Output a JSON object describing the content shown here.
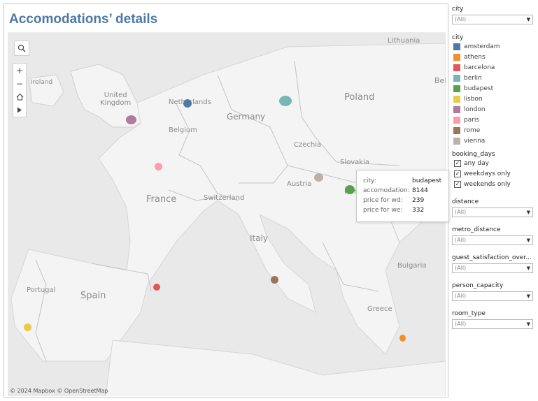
{
  "title": "Accomodations’ details",
  "map": {
    "credit": "© 2024 Mapbox © OpenStreetMap",
    "labels": {
      "lithuania": "Lithuania",
      "ireland": "Ireland",
      "united_kingdom": "United\nKingdom",
      "netherlands": "Netherlands",
      "germany": "Germany",
      "poland": "Poland",
      "bela": "Bela",
      "belgium": "Belgium",
      "czechia": "Czechia",
      "slovakia": "Slovakia",
      "austria": "Austria",
      "hungary": "Hungary",
      "france": "France",
      "switzerland": "Switzerland",
      "italy": "Italy",
      "bulgaria": "Bulgaria",
      "spain": "Spain",
      "portugal": "Portugal",
      "greece": "Greece"
    },
    "controls": {
      "search_icon": "search-icon",
      "zoom_in": "+",
      "zoom_out": "−",
      "home_icon": "home-icon",
      "expand_icon": "play-icon"
    },
    "colors": {
      "amsterdam": "#4e79a7",
      "athens": "#f28e2b",
      "barcelona": "#e15759",
      "berlin": "#76b7b2",
      "budapest": "#59a14f",
      "lisbon": "#edc948",
      "london": "#b07aa1",
      "paris": "#ff9da7",
      "rome": "#9c755f",
      "vienna": "#bab0ac"
    }
  },
  "tooltip": {
    "city_label": "city:",
    "city_value": "budapest",
    "accom_label": "accomodation:",
    "accom_value": "8144",
    "wd_label": "price for wd:",
    "wd_value": "239",
    "we_label": "price for we:",
    "we_value": "332"
  },
  "filters": {
    "city_dropdown": {
      "title": "city",
      "value": "(All)"
    },
    "city_legend": {
      "title": "city",
      "items": [
        "amsterdam",
        "athens",
        "barcelona",
        "berlin",
        "budapest",
        "lisbon",
        "london",
        "paris",
        "rome",
        "vienna"
      ]
    },
    "booking_days": {
      "title": "booking_days",
      "options": [
        "any day",
        "weekdays only",
        "weekends only"
      ],
      "checkmark": "✓"
    },
    "distance": {
      "title": "distance",
      "value": "(All)"
    },
    "metro_distance": {
      "title": "metro_distance",
      "value": "(All)"
    },
    "guest_satisfaction": {
      "title": "guest_satisfaction_over...",
      "value": "(All)"
    },
    "person_capacity": {
      "title": "person_capacity",
      "value": "(All)"
    },
    "room_type": {
      "title": "room_type",
      "value": "(All)"
    },
    "arrow": "▼"
  }
}
